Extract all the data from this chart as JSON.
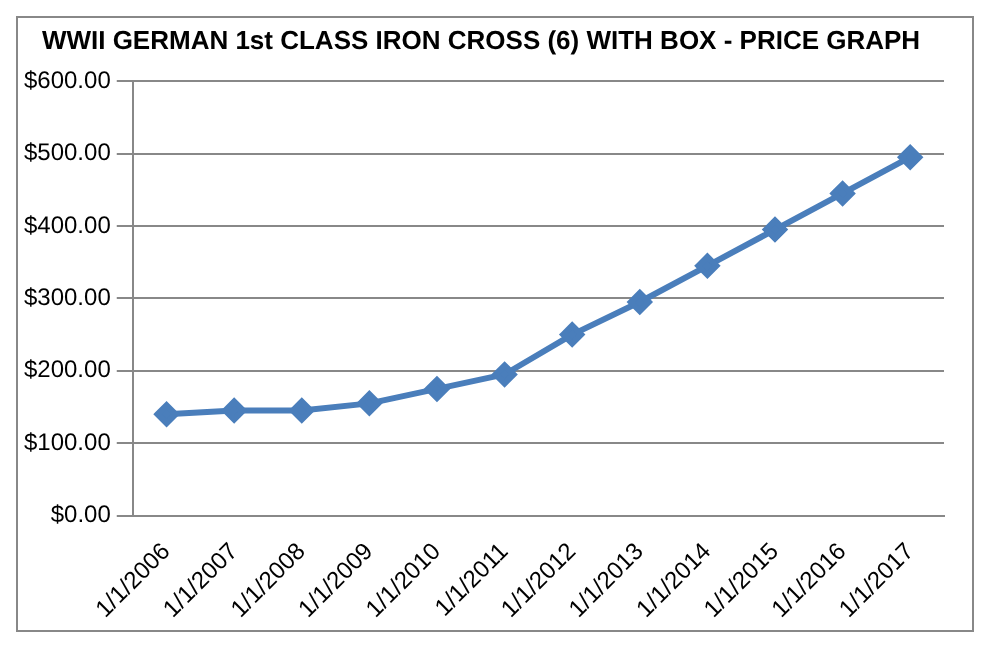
{
  "chart_data": {
    "type": "line",
    "title": "WWII GERMAN 1st CLASS IRON CROSS (6) WITH BOX - PRICE GRAPH",
    "categories": [
      "1/1/2006",
      "1/1/2007",
      "1/1/2008",
      "1/1/2009",
      "1/1/2010",
      "1/1/2011",
      "1/1/2012",
      "1/1/2013",
      "1/1/2014",
      "1/1/2015",
      "1/1/2016",
      "1/1/2017"
    ],
    "series": [
      {
        "color": "#4a7ebb",
        "values": [
          140,
          145,
          145,
          155,
          175,
          195,
          250,
          295,
          345,
          395,
          445,
          495
        ]
      }
    ],
    "ylim": [
      0,
      600
    ],
    "yticks": [
      {
        "value": 0,
        "label": "$0.00"
      },
      {
        "value": 100,
        "label": "$100.00"
      },
      {
        "value": 200,
        "label": "$200.00"
      },
      {
        "value": 300,
        "label": "$300.00"
      },
      {
        "value": 400,
        "label": "$400.00"
      },
      {
        "value": 500,
        "label": "$500.00"
      },
      {
        "value": 600,
        "label": "$600.00"
      }
    ],
    "grid": "y",
    "marker": "diamond",
    "line_style": "solid",
    "legend": false
  }
}
